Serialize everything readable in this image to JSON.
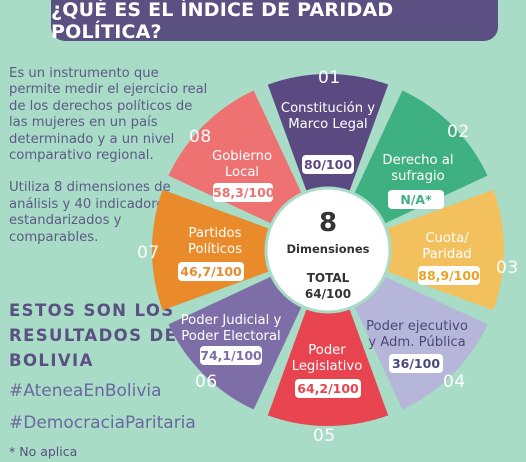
{
  "title": "¿QUÉ ES EL ÍNDICE DE PARIDAD POLÍTICA?",
  "intro": {
    "paragraph1": "Es un instrumento que permite medir el ejercicio real de los derechos políticos de las mujeres en un país determinado y a un nivel comparativo regional.",
    "paragraph2": "Utiliza 8 dimensiones de análisis y 40 indicadores estandarizados y comparables."
  },
  "results": {
    "heading": "ESTOS SON LOS RESULTADOS DE BOLIVIA",
    "hashtag1": "#AteneaEnBolivia",
    "hashtag2": "#DemocraciaParitaria"
  },
  "footnote": "* No aplica",
  "center": {
    "number": "8",
    "label": "Dimensiones",
    "total_label": "TOTAL",
    "total_value": "64/100"
  },
  "colors": {
    "background": "#a8dcc6",
    "title_bar": "#5b5082",
    "dim01": "#5b4a82",
    "dim02": "#3fb082",
    "dim03": "#f2c05c",
    "dim04": "#b6b6da",
    "dim05": "#e8444f",
    "dim06": "#7e6ea8",
    "dim07": "#e98a2b",
    "dim08": "#ef7272"
  },
  "dimensions": [
    {
      "number": "01",
      "name": "Constitución y Marco Legal",
      "score": "80/100"
    },
    {
      "number": "02",
      "name": "Derecho al sufragio",
      "score": "N/A*"
    },
    {
      "number": "03",
      "name": "Cuota/ Paridad",
      "score": "88,9/100"
    },
    {
      "number": "04",
      "name": "Poder ejecutivo y Adm. Pública",
      "score": "36/100"
    },
    {
      "number": "05",
      "name": "Poder Legislativo",
      "score": "64,2/100"
    },
    {
      "number": "06",
      "name": "Poder Judicial y Poder Electoral",
      "score": "74,1/100"
    },
    {
      "number": "07",
      "name": "Partidos Políticos",
      "score": "46,7/100"
    },
    {
      "number": "08",
      "name": "Gobierno Local",
      "score": "58,3/100"
    }
  ]
}
